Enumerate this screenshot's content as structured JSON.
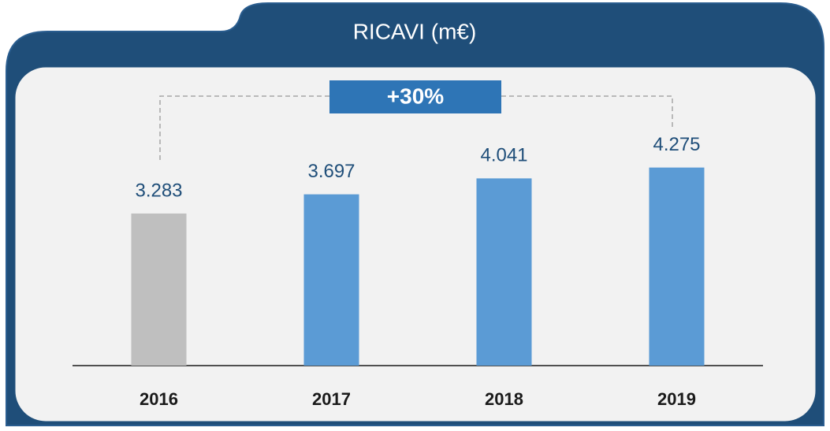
{
  "chart_data": {
    "type": "bar",
    "title": "RICAVI (m€)",
    "categories": [
      "2016",
      "2017",
      "2018",
      "2019"
    ],
    "values": [
      3283,
      3697,
      4041,
      4275
    ],
    "value_labels": [
      "3.283",
      "3.697",
      "4.041",
      "4.275"
    ],
    "colors": [
      "#bfbfbf",
      "#5b9bd5",
      "#5b9bd5",
      "#5b9bd5"
    ],
    "annotation": "+30%"
  }
}
